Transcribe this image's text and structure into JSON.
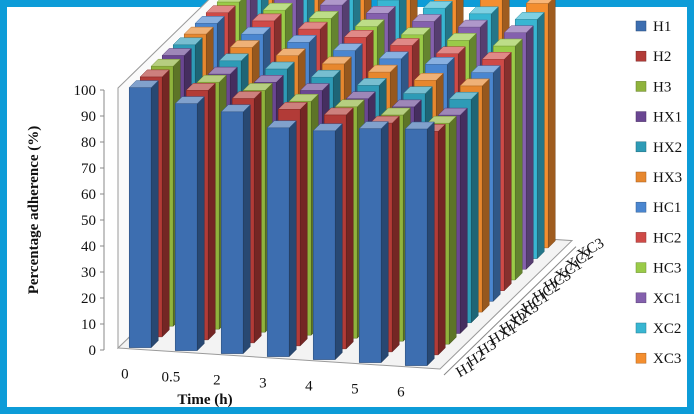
{
  "chart_data": {
    "type": "bar",
    "subtype": "3d-clustered-bar",
    "x": [
      0,
      0.5,
      2,
      3,
      4,
      5,
      6
    ],
    "xlabel": "Time (h)",
    "ylabel": "Percentage adherence (%)",
    "ylim": [
      0,
      100
    ],
    "yticks": [
      0,
      10,
      20,
      30,
      40,
      50,
      60,
      70,
      80,
      90,
      100
    ],
    "legend_position": "right",
    "grid": false,
    "series": [
      {
        "name": "H1",
        "color": "#3d6eb0",
        "values": [
          100,
          95,
          93,
          88,
          88,
          90,
          91
        ]
      },
      {
        "name": "H2",
        "color": "#b23b37",
        "values": [
          100,
          96,
          94,
          91,
          90,
          88,
          86
        ]
      },
      {
        "name": "H3",
        "color": "#8fb33c",
        "values": [
          100,
          95,
          93,
          90,
          89,
          87,
          85
        ]
      },
      {
        "name": "HX1",
        "color": "#6a4692",
        "values": [
          100,
          94,
          92,
          90,
          88,
          86,
          84
        ]
      },
      {
        "name": "HX2",
        "color": "#2e9bb6",
        "values": [
          100,
          95,
          93,
          91,
          89,
          87,
          86
        ]
      },
      {
        "name": "HX3",
        "color": "#e7872e",
        "values": [
          100,
          96,
          94,
          92,
          90,
          88,
          87
        ]
      },
      {
        "name": "HC1",
        "color": "#4a86d0",
        "values": [
          100,
          97,
          95,
          93,
          91,
          90,
          88
        ]
      },
      {
        "name": "HC2",
        "color": "#cf4a47",
        "values": [
          100,
          98,
          96,
          94,
          92,
          90,
          89
        ]
      },
      {
        "name": "HC3",
        "color": "#9acb48",
        "values": [
          100,
          98,
          96,
          94,
          92,
          91,
          90
        ]
      },
      {
        "name": "XC1",
        "color": "#8460ad",
        "values": [
          100,
          99,
          97,
          95,
          93,
          92,
          91
        ]
      },
      {
        "name": "XC2",
        "color": "#38b6d2",
        "values": [
          100,
          99,
          98,
          96,
          94,
          93,
          92
        ]
      },
      {
        "name": "XC3",
        "color": "#f48e2f",
        "values": [
          100,
          100,
          100,
          98,
          96,
          95,
          94
        ]
      }
    ]
  }
}
